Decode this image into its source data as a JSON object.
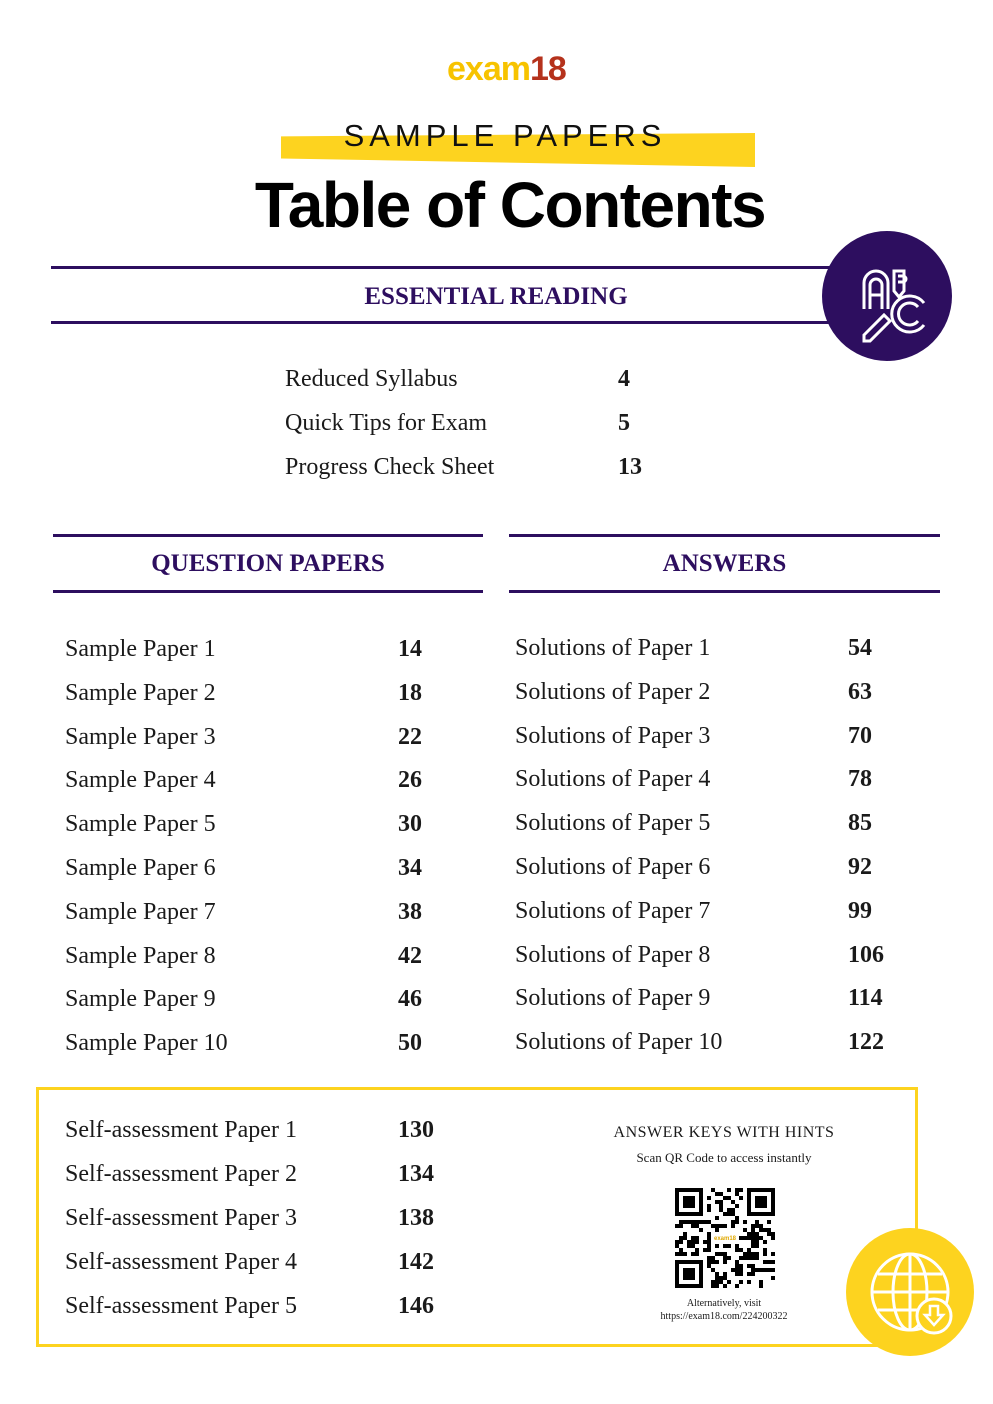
{
  "logo": {
    "text_a": "exam",
    "text_b": "18"
  },
  "header": {
    "subtitle": "SAMPLE PAPERS",
    "title": "Table of Contents"
  },
  "essential": {
    "heading": "ESSENTIAL READING",
    "items": [
      {
        "label": "Reduced Syllabus",
        "page": "4"
      },
      {
        "label": "Quick Tips for Exam",
        "page": "5"
      },
      {
        "label": "Progress Check Sheet",
        "page": "13"
      }
    ]
  },
  "questions": {
    "heading": "QUESTION PAPERS",
    "items": [
      {
        "label": "Sample Paper 1",
        "page": "14"
      },
      {
        "label": "Sample Paper 2",
        "page": "18"
      },
      {
        "label": "Sample Paper 3",
        "page": "22"
      },
      {
        "label": "Sample Paper 4",
        "page": "26"
      },
      {
        "label": "Sample Paper 5",
        "page": "30"
      },
      {
        "label": "Sample Paper 6",
        "page": "34"
      },
      {
        "label": "Sample Paper 7",
        "page": "38"
      },
      {
        "label": "Sample Paper 8",
        "page": "42"
      },
      {
        "label": "Sample Paper 9",
        "page": "46"
      },
      {
        "label": "Sample Paper 10",
        "page": "50"
      }
    ]
  },
  "answers": {
    "heading": "ANSWERS",
    "items": [
      {
        "label": "Solutions of Paper 1",
        "page": "54"
      },
      {
        "label": "Solutions of Paper 2",
        "page": "63"
      },
      {
        "label": "Solutions of Paper 3",
        "page": "70"
      },
      {
        "label": "Solutions of Paper 4",
        "page": "78"
      },
      {
        "label": "Solutions of Paper 5",
        "page": "85"
      },
      {
        "label": "Solutions of Paper 6",
        "page": "92"
      },
      {
        "label": "Solutions of Paper 7",
        "page": "99"
      },
      {
        "label": "Solutions of Paper 8",
        "page": "106"
      },
      {
        "label": "Solutions of Paper 9",
        "page": "114"
      },
      {
        "label": "Solutions of Paper 10",
        "page": "122"
      }
    ]
  },
  "self_assessment": {
    "items": [
      {
        "label": "Self-assessment Paper 1",
        "page": "130"
      },
      {
        "label": "Self-assessment Paper 2",
        "page": "134"
      },
      {
        "label": "Self-assessment Paper 3",
        "page": "138"
      },
      {
        "label": "Self-assessment Paper 4",
        "page": "142"
      },
      {
        "label": "Self-assessment Paper 5",
        "page": "146"
      }
    ]
  },
  "qr_panel": {
    "heading": "ANSWER KEYS WITH HINTS",
    "subheading": "Scan QR Code to access instantly",
    "alt_text": "Alternatively, visit",
    "url": "https://exam18.com/224200322"
  },
  "icons": {
    "essential": "abc-pencil-icon",
    "download": "globe-download-icon",
    "qr": "qr-code"
  },
  "colors": {
    "accent_purple": "#2d0e5f",
    "accent_yellow": "#fdd31f",
    "logo_yellow": "#f7c300",
    "logo_red": "#b5321c"
  }
}
